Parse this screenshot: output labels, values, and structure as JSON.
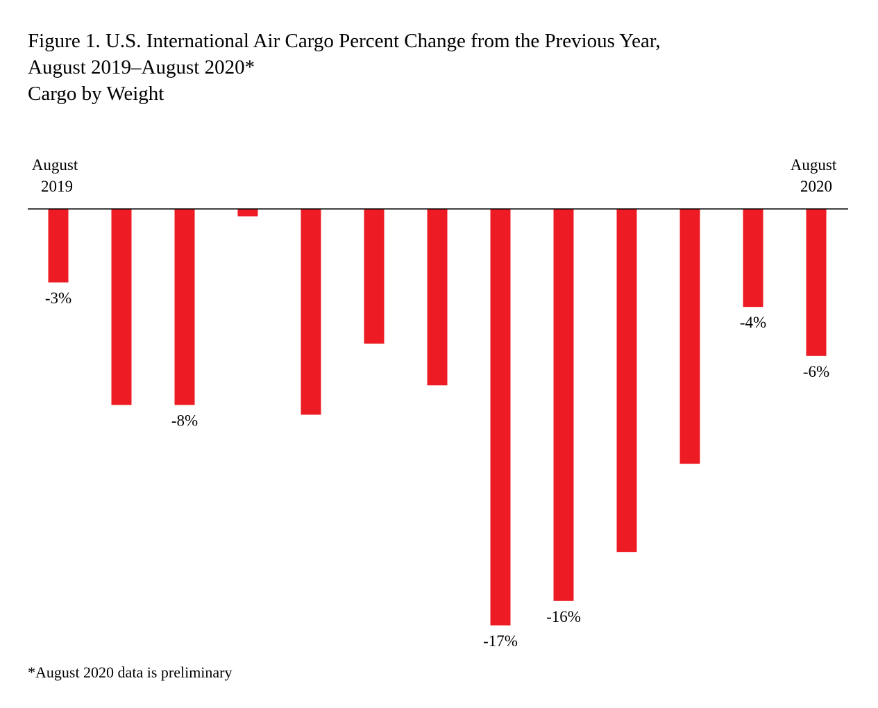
{
  "title": {
    "line1": "Figure 1. U.S. International Air Cargo Percent Change from the Previous Year,",
    "line2": "August 2019–August 2020*",
    "line3": "Cargo by Weight"
  },
  "footnote": "*August 2020 data is preliminary",
  "colors": {
    "bar": "#ed1c24",
    "axis": "#000000",
    "text": "#000000",
    "background": "#ffffff"
  },
  "chart_data": {
    "type": "bar",
    "title": "Figure 1. U.S. International Air Cargo Percent Change from the Previous Year, August 2019–August 2020*",
    "subtitle": "Cargo by Weight",
    "xlabel": "",
    "ylabel": "",
    "unit": "%",
    "ylim": [
      -17,
      0
    ],
    "grid": false,
    "legend": "none",
    "start_label": [
      "August",
      "2019"
    ],
    "end_label": [
      "August",
      "2020"
    ],
    "values": [
      -3,
      -8,
      -8,
      -0.3,
      -8.4,
      -5.5,
      -7.2,
      -17,
      -16,
      -14,
      -10.4,
      -4,
      -6
    ],
    "data_labels": [
      "-3%",
      "",
      "-8%",
      "",
      "",
      "",
      "",
      "-17%",
      "-16%",
      "",
      "",
      "-4%",
      "-6%"
    ]
  }
}
